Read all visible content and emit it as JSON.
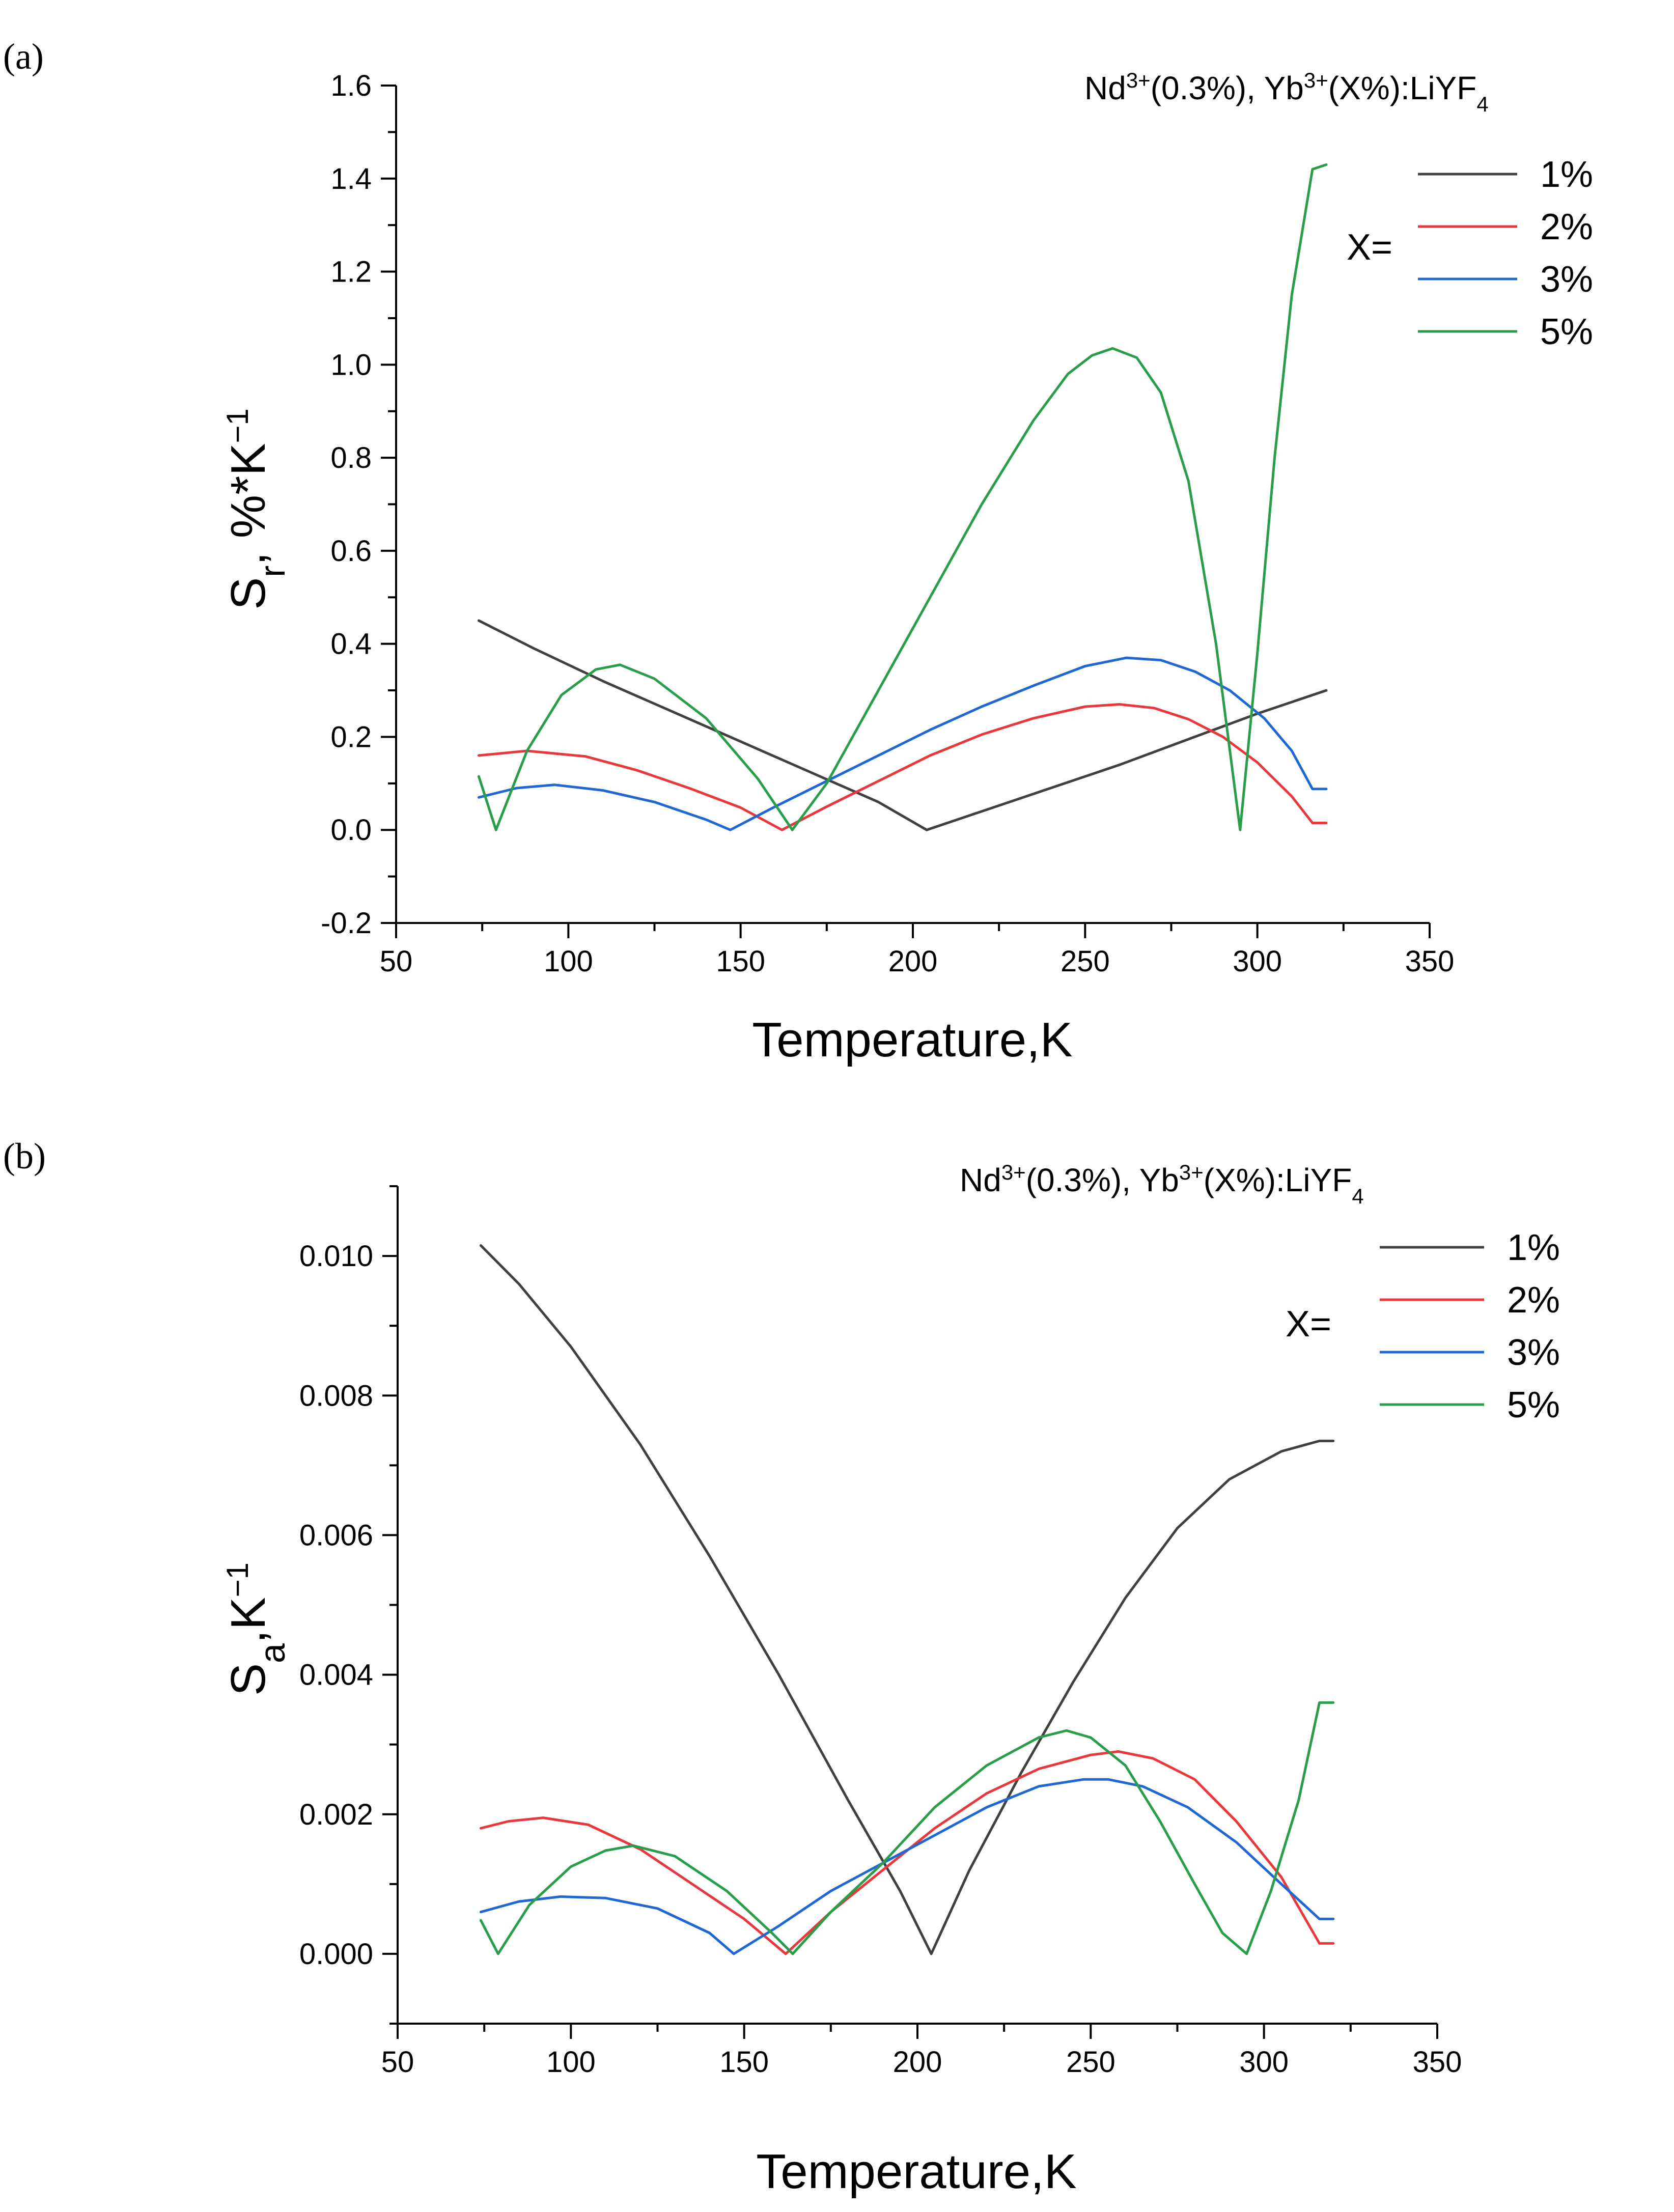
{
  "chart_data": [
    {
      "panel_label": "(a)",
      "type": "line",
      "title_prefix": "Nd",
      "title_sup1": "3+",
      "title_mid": "(0.3%), Yb",
      "title_sup2": "3+",
      "title_mid2": "(X%):LiYF",
      "title_sub": "4",
      "xlabel": "Temperature,K",
      "ylabel_main": "S",
      "ylabel_sub": "r",
      "ylabel_rest": ", %*K",
      "ylabel_sup": "−1",
      "xlim": [
        50,
        350
      ],
      "ylim": [
        -0.2,
        1.6
      ],
      "xticks": [
        50,
        100,
        150,
        200,
        250,
        300,
        350
      ],
      "xtick_labels": [
        "50",
        "100",
        "150",
        "200",
        "250",
        "300",
        "350"
      ],
      "yticks": [
        -0.2,
        0.0,
        0.2,
        0.4,
        0.6,
        0.8,
        1.0,
        1.2,
        1.4,
        1.6
      ],
      "ytick_labels": [
        "-0.2",
        "0.0",
        "0.2",
        "0.4",
        "0.6",
        "0.8",
        "1.0",
        "1.2",
        "1.4",
        "1.6"
      ],
      "legend_prefix": "X=",
      "legend_position": "top-right",
      "series": [
        {
          "name": "1%",
          "color": "#404040",
          "x": [
            74,
            90,
            110,
            130,
            150,
            170,
            190,
            204,
            220,
            240,
            260,
            280,
            300,
            320
          ],
          "y": [
            0.45,
            0.39,
            0.32,
            0.255,
            0.19,
            0.125,
            0.06,
            0.0,
            0.04,
            0.09,
            0.14,
            0.195,
            0.25,
            0.3
          ]
        },
        {
          "name": "2%",
          "color": "#e8383c",
          "x": [
            74,
            88,
            105,
            120,
            135,
            150,
            162,
            175,
            190,
            205,
            220,
            235,
            250,
            260,
            270,
            280,
            290,
            300,
            310,
            316,
            320
          ],
          "y": [
            0.16,
            0.17,
            0.158,
            0.128,
            0.09,
            0.048,
            0.0,
            0.05,
            0.105,
            0.16,
            0.205,
            0.24,
            0.265,
            0.27,
            0.262,
            0.238,
            0.2,
            0.145,
            0.072,
            0.015,
            0.015
          ]
        },
        {
          "name": "3%",
          "color": "#1f68d4",
          "x": [
            74,
            85,
            96,
            110,
            125,
            140,
            147,
            160,
            175,
            190,
            205,
            220,
            235,
            250,
            262,
            272,
            282,
            292,
            302,
            310,
            316,
            320
          ],
          "y": [
            0.07,
            0.09,
            0.097,
            0.085,
            0.06,
            0.022,
            0.0,
            0.05,
            0.105,
            0.16,
            0.215,
            0.265,
            0.31,
            0.352,
            0.37,
            0.365,
            0.34,
            0.3,
            0.24,
            0.17,
            0.088,
            0.088
          ]
        },
        {
          "name": "5%",
          "color": "#2a9d4a",
          "x": [
            74,
            79,
            88,
            98,
            108,
            115,
            125,
            140,
            155,
            165,
            175,
            190,
            205,
            220,
            235,
            245,
            252,
            258,
            265,
            272,
            280,
            288,
            295,
            300,
            305,
            310,
            316,
            320
          ],
          "y": [
            0.115,
            0.0,
            0.17,
            0.29,
            0.345,
            0.355,
            0.325,
            0.24,
            0.11,
            0.0,
            0.1,
            0.3,
            0.5,
            0.7,
            0.88,
            0.98,
            1.02,
            1.035,
            1.015,
            0.94,
            0.75,
            0.4,
            0.0,
            0.38,
            0.8,
            1.15,
            1.42,
            1.43
          ]
        }
      ]
    },
    {
      "panel_label": "(b)",
      "type": "line",
      "title_prefix": "Nd",
      "title_sup1": "3+",
      "title_mid": "(0.3%), Yb",
      "title_sup2": "3+",
      "title_mid2": "(X%):LiYF",
      "title_sub": "4",
      "xlabel": "Temperature,K",
      "ylabel_main": "S",
      "ylabel_sub": "a",
      "ylabel_rest": ",K",
      "ylabel_sup": "−1",
      "xlim": [
        50,
        350
      ],
      "ylim": [
        -0.001,
        0.011
      ],
      "xticks": [
        50,
        100,
        150,
        200,
        250,
        300,
        350
      ],
      "xtick_labels": [
        "50",
        "100",
        "150",
        "200",
        "250",
        "300",
        "350"
      ],
      "yticks": [
        0.0,
        0.002,
        0.004,
        0.006,
        0.008,
        0.01
      ],
      "ytick_labels": [
        "0.000",
        "0.002",
        "0.004",
        "0.006",
        "0.008",
        "0.010"
      ],
      "legend_prefix": "X=",
      "legend_position": "top-right",
      "series": [
        {
          "name": "1%",
          "color": "#404040",
          "x": [
            74,
            85,
            100,
            120,
            140,
            160,
            180,
            195,
            204,
            215,
            230,
            245,
            260,
            275,
            290,
            305,
            316,
            320
          ],
          "y": [
            0.01015,
            0.0096,
            0.0087,
            0.0073,
            0.0057,
            0.004,
            0.0022,
            0.0009,
            0.0,
            0.0012,
            0.0026,
            0.0039,
            0.0051,
            0.0061,
            0.0068,
            0.0072,
            0.00735,
            0.00735
          ]
        },
        {
          "name": "2%",
          "color": "#e8383c",
          "x": [
            74,
            82,
            92,
            105,
            120,
            135,
            150,
            162,
            175,
            190,
            205,
            220,
            235,
            250,
            258,
            268,
            280,
            292,
            305,
            316,
            320
          ],
          "y": [
            0.0018,
            0.0019,
            0.00195,
            0.00185,
            0.0015,
            0.001,
            0.0005,
            0.0,
            0.0006,
            0.0012,
            0.0018,
            0.0023,
            0.00265,
            0.00285,
            0.0029,
            0.0028,
            0.0025,
            0.0019,
            0.0011,
            0.00015,
            0.00015
          ]
        },
        {
          "name": "3%",
          "color": "#1f68d4",
          "x": [
            74,
            85,
            97,
            110,
            125,
            140,
            147,
            160,
            175,
            190,
            205,
            220,
            235,
            248,
            255,
            265,
            278,
            292,
            305,
            316,
            320
          ],
          "y": [
            0.0006,
            0.00075,
            0.00082,
            0.0008,
            0.00065,
            0.0003,
            0.0,
            0.0004,
            0.0009,
            0.0013,
            0.0017,
            0.0021,
            0.0024,
            0.0025,
            0.0025,
            0.0024,
            0.0021,
            0.0016,
            0.001,
            0.0005,
            0.0005
          ]
        },
        {
          "name": "5%",
          "color": "#2a9d4a",
          "x": [
            74,
            79,
            88,
            100,
            110,
            118,
            130,
            145,
            158,
            164,
            175,
            190,
            205,
            220,
            235,
            243,
            250,
            260,
            270,
            280,
            288,
            295,
            302,
            310,
            316,
            320
          ],
          "y": [
            0.00048,
            0.0,
            0.0007,
            0.00125,
            0.00148,
            0.00155,
            0.0014,
            0.0009,
            0.0003,
            0.0,
            0.0006,
            0.0013,
            0.0021,
            0.0027,
            0.0031,
            0.0032,
            0.0031,
            0.0027,
            0.0019,
            0.001,
            0.0003,
            0.0,
            0.0009,
            0.0022,
            0.0036,
            0.0036
          ]
        }
      ]
    }
  ]
}
